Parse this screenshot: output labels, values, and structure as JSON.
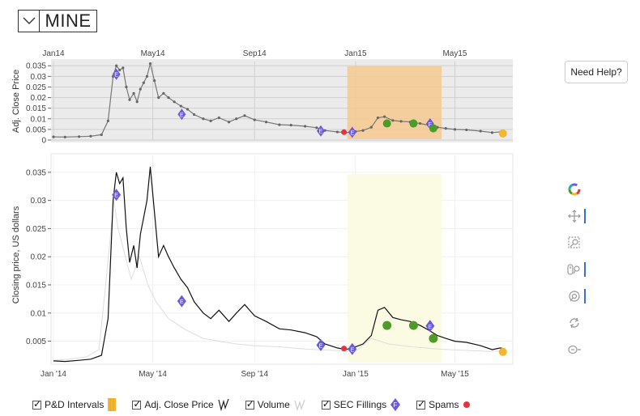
{
  "ticker": {
    "symbol": "MINE"
  },
  "help_button": {
    "label": "Need Help?"
  },
  "legend": {
    "items": [
      {
        "id": "pd",
        "label": "P&D Intervals"
      },
      {
        "id": "adj",
        "label": "Adj. Close Price"
      },
      {
        "id": "vol",
        "label": "Volume"
      },
      {
        "id": "sec",
        "label": "SEC Fillings"
      },
      {
        "id": "spam",
        "label": "Spams"
      }
    ]
  },
  "colors": {
    "pd_overview": "#f6c98f",
    "pd_main": "#fbfbe3",
    "sec": "#6a5ae0",
    "spam": "#e8323c",
    "green": "#4e9a2a",
    "orange": "#f2b632",
    "price_main": "#111111",
    "price_overview": "#777777",
    "volume": "#dddddd"
  },
  "icons": [
    "chevron-down-icon",
    "color-wheel-icon",
    "pan-icon",
    "box-zoom-icon",
    "wheel-zoom-icon",
    "reset-icon",
    "hover-icon"
  ],
  "chart_data": [
    {
      "id": "overview",
      "type": "line",
      "ylabel": "Adj. Close Price",
      "x_ticks": [
        "Jan14",
        "May14",
        "Sep14",
        "Jan15",
        "May15"
      ],
      "y_ticks": [
        "0.035",
        "0.03",
        "0.025",
        "0.02",
        "0.015",
        "0.01",
        "0.005",
        "0"
      ],
      "ylim": [
        0,
        0.037
      ],
      "grid": true
    },
    {
      "id": "main",
      "type": "line",
      "ylabel": "Closing price, US dollars",
      "x_ticks": [
        "Jan '14",
        "May '14",
        "Sep '14",
        "Jan '15",
        "May '15"
      ],
      "y_ticks": [
        "0.035",
        "0.03",
        "0.025",
        "0.02",
        "0.015",
        "0.01",
        "0.005"
      ],
      "ylim": [
        0.0012,
        0.038
      ],
      "grid": true
    }
  ],
  "series": {
    "x_domain": [
      "2014-01-01",
      "2015-07-10"
    ],
    "price": [
      [
        "2014-01-01",
        0.0015
      ],
      [
        "2014-01-15",
        0.0014
      ],
      [
        "2014-02-01",
        0.0016
      ],
      [
        "2014-02-15",
        0.0018
      ],
      [
        "2014-02-28",
        0.0025
      ],
      [
        "2014-03-08",
        0.009
      ],
      [
        "2014-03-14",
        0.03
      ],
      [
        "2014-03-18",
        0.035
      ],
      [
        "2014-03-22",
        0.033
      ],
      [
        "2014-03-26",
        0.034
      ],
      [
        "2014-03-30",
        0.025
      ],
      [
        "2014-04-03",
        0.019
      ],
      [
        "2014-04-08",
        0.022
      ],
      [
        "2014-04-12",
        0.018
      ],
      [
        "2014-04-16",
        0.024
      ],
      [
        "2014-04-20",
        0.027
      ],
      [
        "2014-04-24",
        0.03
      ],
      [
        "2014-04-28",
        0.036
      ],
      [
        "2014-05-03",
        0.028
      ],
      [
        "2014-05-08",
        0.02
      ],
      [
        "2014-05-14",
        0.022
      ],
      [
        "2014-05-20",
        0.02
      ],
      [
        "2014-05-27",
        0.018
      ],
      [
        "2014-06-04",
        0.016
      ],
      [
        "2014-06-12",
        0.0145
      ],
      [
        "2014-06-20",
        0.012
      ],
      [
        "2014-07-01",
        0.01
      ],
      [
        "2014-07-10",
        0.009
      ],
      [
        "2014-07-20",
        0.0105
      ],
      [
        "2014-08-01",
        0.0085
      ],
      [
        "2014-08-10",
        0.01
      ],
      [
        "2014-08-20",
        0.0115
      ],
      [
        "2014-09-01",
        0.0095
      ],
      [
        "2014-09-15",
        0.0085
      ],
      [
        "2014-10-01",
        0.0072
      ],
      [
        "2014-10-15",
        0.007
      ],
      [
        "2014-11-01",
        0.0065
      ],
      [
        "2014-11-15",
        0.0058
      ],
      [
        "2014-11-25",
        0.0045
      ],
      [
        "2014-12-10",
        0.0038
      ],
      [
        "2014-12-20",
        0.0035
      ],
      [
        "2015-01-01",
        0.004
      ],
      [
        "2015-01-10",
        0.0045
      ],
      [
        "2015-01-20",
        0.006
      ],
      [
        "2015-01-28",
        0.0105
      ],
      [
        "2015-02-05",
        0.011
      ],
      [
        "2015-02-15",
        0.0092
      ],
      [
        "2015-02-25",
        0.0088
      ],
      [
        "2015-03-08",
        0.0085
      ],
      [
        "2015-03-20",
        0.0078
      ],
      [
        "2015-03-30",
        0.007
      ],
      [
        "2015-04-10",
        0.006
      ],
      [
        "2015-04-20",
        0.0055
      ],
      [
        "2015-05-01",
        0.005
      ],
      [
        "2015-05-15",
        0.0048
      ],
      [
        "2015-06-01",
        0.0042
      ],
      [
        "2015-06-15",
        0.0035
      ],
      [
        "2015-06-25",
        0.0038
      ],
      [
        "2015-07-01",
        0.0036
      ]
    ],
    "volume": [
      [
        "2014-01-01",
        0.0016
      ],
      [
        "2014-01-20",
        0.0018
      ],
      [
        "2014-02-10",
        0.0022
      ],
      [
        "2014-02-25",
        0.0035
      ],
      [
        "2014-03-05",
        0.015
      ],
      [
        "2014-03-15",
        0.03
      ],
      [
        "2014-03-20",
        0.025
      ],
      [
        "2014-04-05",
        0.016
      ],
      [
        "2014-04-15",
        0.02
      ],
      [
        "2014-04-25",
        0.015
      ],
      [
        "2014-05-05",
        0.012
      ],
      [
        "2014-05-20",
        0.009
      ],
      [
        "2014-06-10",
        0.007
      ],
      [
        "2014-07-01",
        0.0055
      ],
      [
        "2014-07-20",
        0.005
      ],
      [
        "2014-08-10",
        0.0045
      ],
      [
        "2014-09-01",
        0.0042
      ],
      [
        "2014-10-01",
        0.004
      ],
      [
        "2014-11-01",
        0.0036
      ],
      [
        "2014-12-01",
        0.0034
      ],
      [
        "2015-01-01",
        0.0032
      ],
      [
        "2015-01-20",
        0.0055
      ],
      [
        "2015-02-10",
        0.0045
      ],
      [
        "2015-03-10",
        0.004
      ],
      [
        "2015-04-10",
        0.0036
      ],
      [
        "2015-05-10",
        0.0034
      ],
      [
        "2015-06-10",
        0.0032
      ],
      [
        "2015-07-01",
        0.0033
      ]
    ],
    "pd_interval": [
      "2014-12-22",
      "2015-04-15"
    ],
    "sec_fillings": [
      [
        "2014-03-18",
        0.031
      ],
      [
        "2014-06-05",
        0.0121
      ],
      [
        "2014-11-20",
        0.0043
      ],
      [
        "2014-12-28",
        0.0036
      ],
      [
        "2015-04-01",
        0.0077
      ]
    ],
    "spams": [
      [
        "2014-12-18",
        0.0037
      ]
    ],
    "pd_markers": [
      [
        "2015-02-08",
        0.0078
      ],
      [
        "2015-03-12",
        0.0078
      ],
      [
        "2015-04-05",
        0.0055
      ]
    ],
    "end_marker": [
      [
        "2015-06-28",
        0.0031
      ]
    ]
  }
}
